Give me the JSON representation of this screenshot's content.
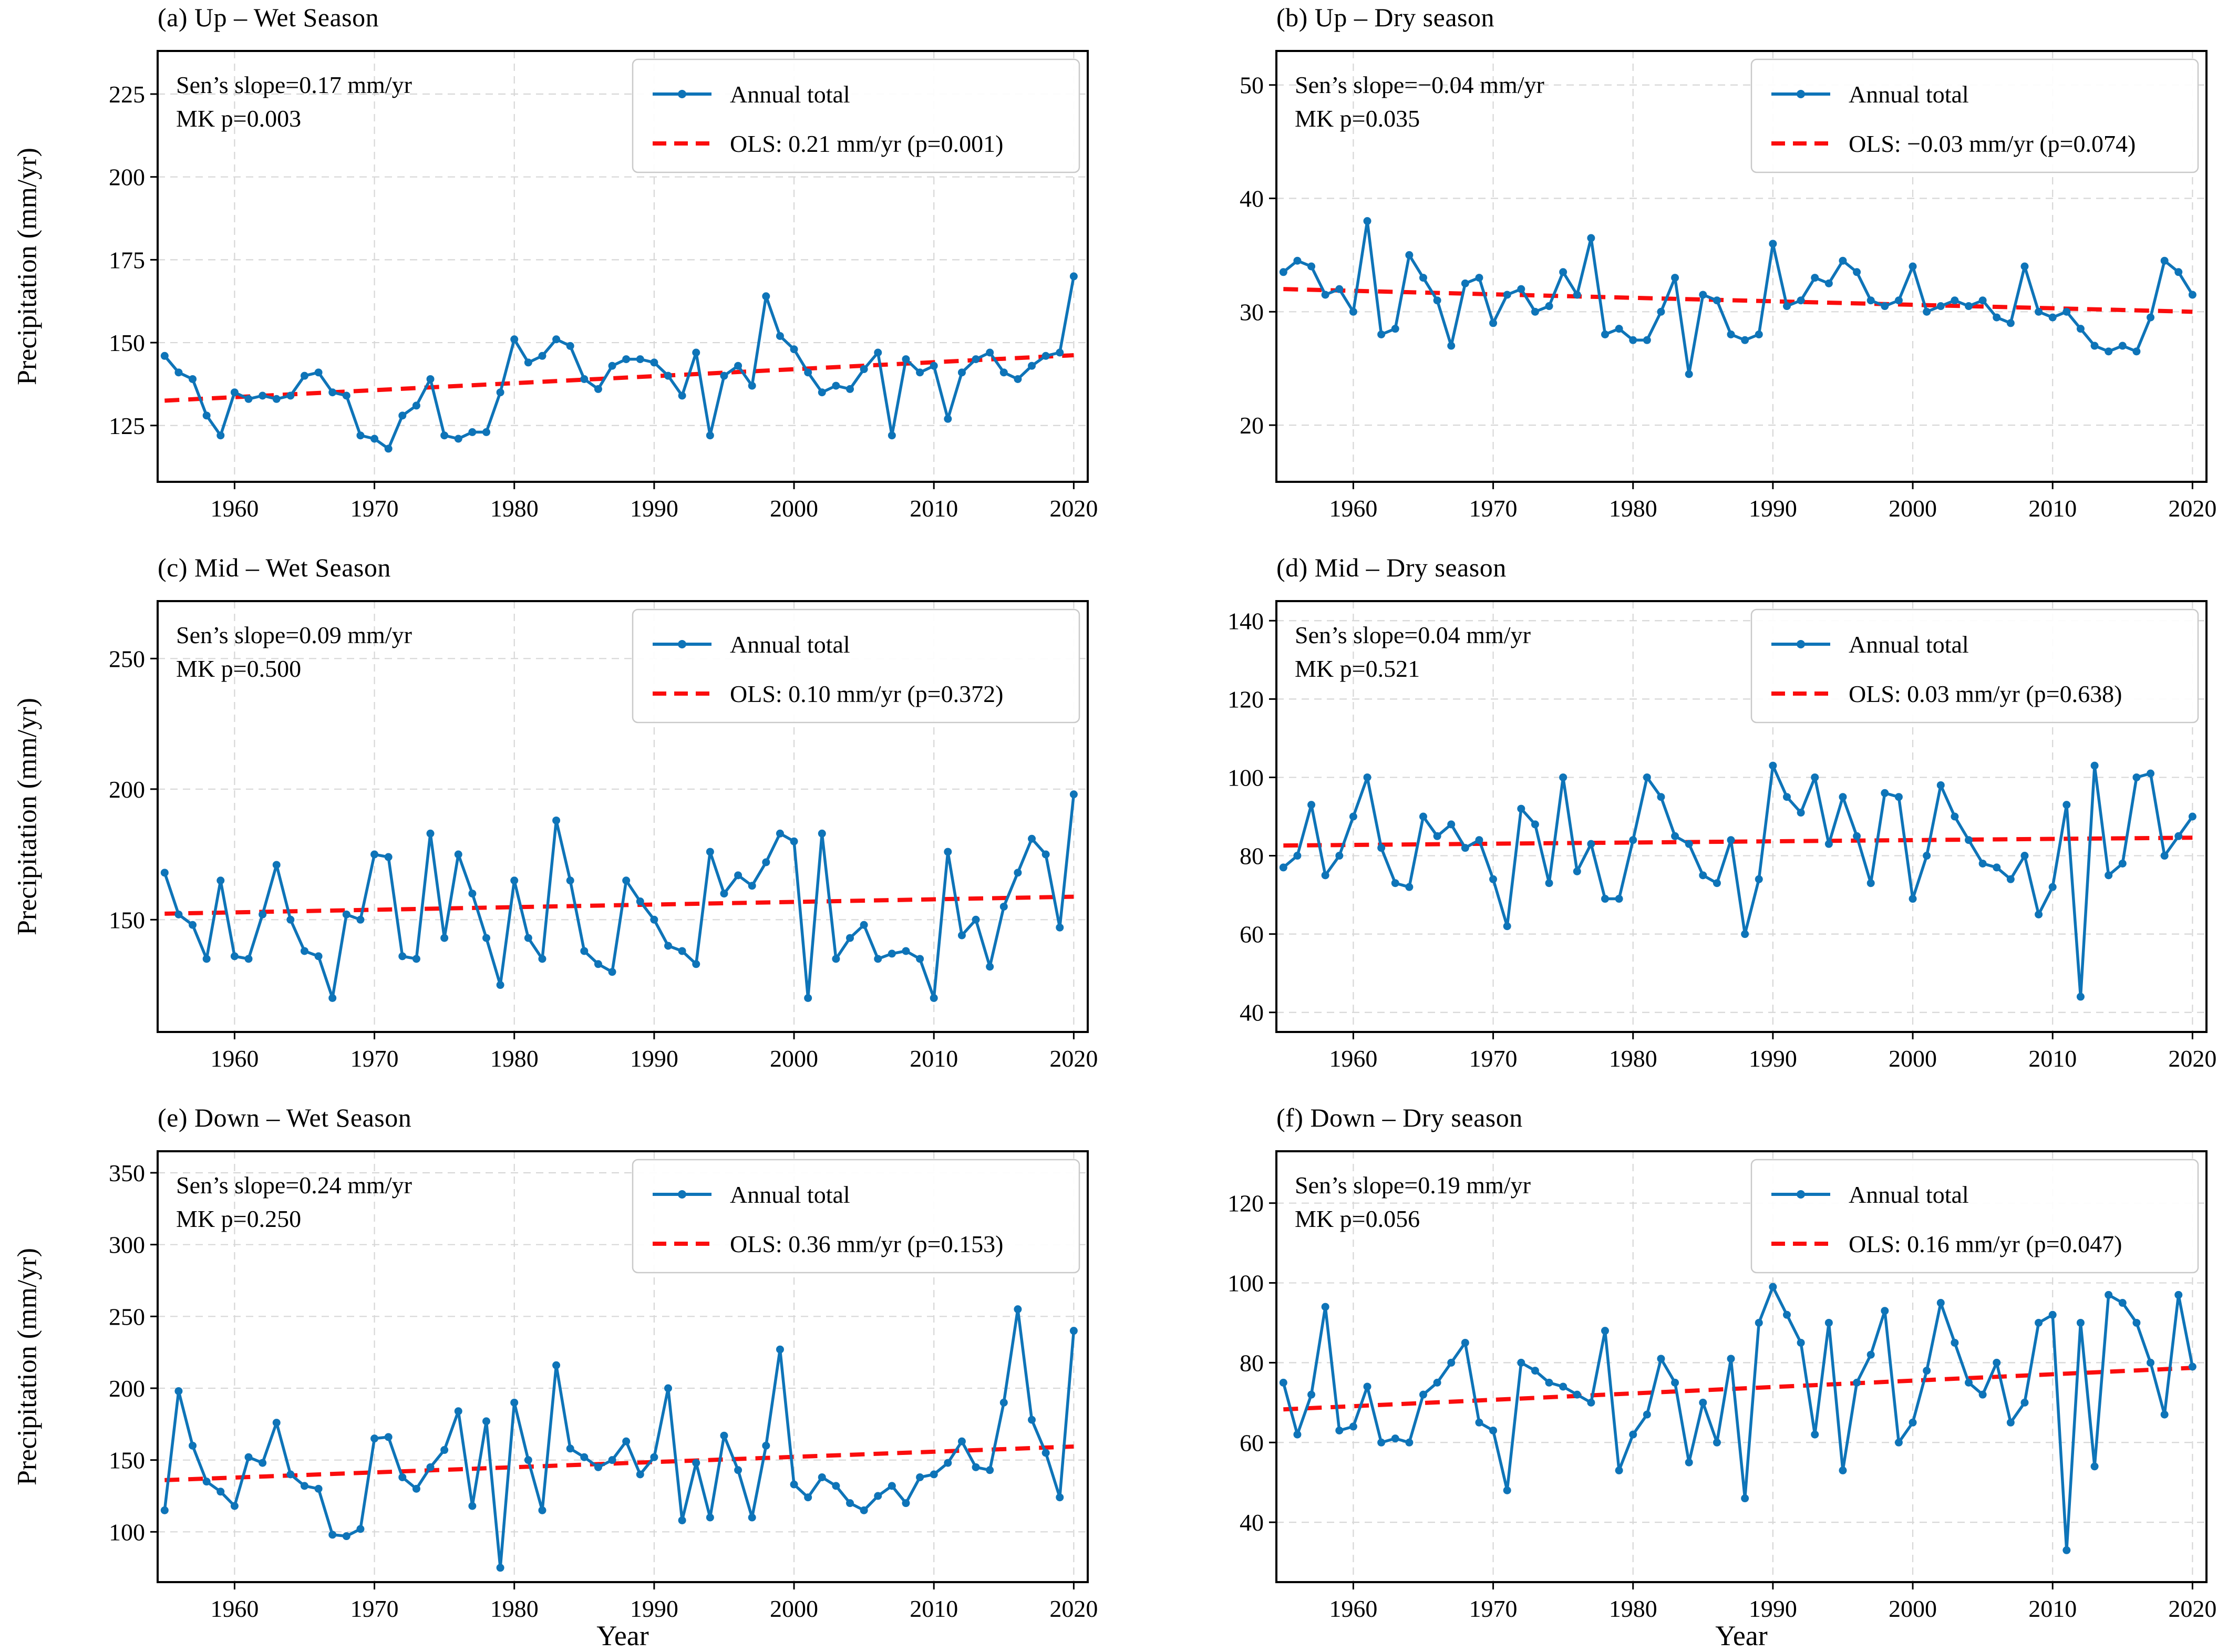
{
  "figure": {
    "ylabel": "Precipitation (mm/yr)",
    "xlabel": "Year",
    "series_color": "#0e74b8",
    "trend_color": "#fb0d0d",
    "grid_color": "#d7d7d7",
    "legend_border_color": "#c9c9c9",
    "background_color": "#ffffff"
  },
  "chart_data": [
    {
      "type": "line",
      "title": "(a) Up – Wet Season",
      "annotation": [
        "Sen’s slope=0.17 mm/yr",
        "MK p=0.003"
      ],
      "legend": [
        "Annual total",
        "OLS: 0.21 mm/yr (p=0.001)"
      ],
      "x_start": 1955,
      "x_step": 1,
      "xlim": [
        1954.5,
        2021
      ],
      "ylim": [
        108,
        238
      ],
      "xticks": [
        1960,
        1970,
        1980,
        1990,
        2000,
        2010,
        2020
      ],
      "yticks": [
        125,
        150,
        175,
        200,
        225
      ],
      "values": [
        146,
        141,
        139,
        128,
        122,
        135,
        133,
        134,
        133,
        134,
        140,
        141,
        135,
        134,
        122,
        121,
        118,
        128,
        131,
        139,
        122,
        121,
        123,
        123,
        135,
        151,
        144,
        146,
        151,
        149,
        139,
        136,
        143,
        145,
        145,
        144,
        140,
        134,
        147,
        122,
        140,
        143,
        137,
        164,
        152,
        148,
        141,
        135,
        137,
        136,
        142,
        147,
        122,
        145,
        141,
        143,
        127,
        141,
        145,
        147,
        141,
        139,
        143,
        146,
        147,
        170
      ],
      "trend": {
        "y_first": 132.5,
        "y_last": 146.2
      },
      "show_ylabel": true,
      "show_xlabel": false
    },
    {
      "type": "line",
      "title": "(b) Up – Dry season",
      "annotation": [
        "Sen’s slope=−0.04 mm/yr",
        "MK p=0.035"
      ],
      "legend": [
        "Annual total",
        "OLS: −0.03 mm/yr (p=0.074)"
      ],
      "x_start": 1955,
      "x_step": 1,
      "xlim": [
        1954.5,
        2021
      ],
      "ylim": [
        15,
        53
      ],
      "xticks": [
        1960,
        1970,
        1980,
        1990,
        2000,
        2010,
        2020
      ],
      "yticks": [
        20,
        30,
        40,
        50
      ],
      "values": [
        33.5,
        34.5,
        34,
        31.5,
        32,
        30,
        38,
        28,
        28.5,
        35,
        33,
        31,
        27,
        32.5,
        33,
        29,
        31.5,
        32,
        30,
        30.5,
        33.5,
        31.5,
        36.5,
        28,
        28.5,
        27.5,
        27.5,
        30,
        33,
        24.5,
        31.5,
        31,
        28,
        27.5,
        28,
        36,
        30.5,
        31,
        33,
        32.5,
        34.5,
        33.5,
        31,
        30.5,
        31,
        34,
        30,
        30.5,
        31,
        30.5,
        31,
        29.5,
        29,
        34,
        30,
        29.5,
        30,
        28.5,
        27,
        26.5,
        27,
        26.5,
        29.5,
        34.5,
        33.5,
        31.5
      ],
      "trend": {
        "y_first": 32.0,
        "y_last": 30.0
      },
      "show_ylabel": false,
      "show_xlabel": false
    },
    {
      "type": "line",
      "title": "(c) Mid – Wet Season",
      "annotation": [
        "Sen’s slope=0.09 mm/yr",
        "MK p=0.500"
      ],
      "legend": [
        "Annual total",
        "OLS: 0.10 mm/yr (p=0.372)"
      ],
      "x_start": 1955,
      "x_step": 1,
      "xlim": [
        1954.5,
        2021
      ],
      "ylim": [
        107,
        272
      ],
      "xticks": [
        1960,
        1970,
        1980,
        1990,
        2000,
        2010,
        2020
      ],
      "yticks": [
        150,
        200,
        250
      ],
      "values": [
        168,
        152,
        148,
        135,
        165,
        136,
        135,
        152,
        171,
        150,
        138,
        136,
        120,
        152,
        150,
        175,
        174,
        136,
        135,
        183,
        143,
        175,
        160,
        143,
        125,
        165,
        143,
        135,
        188,
        165,
        138,
        133,
        130,
        165,
        157,
        150,
        140,
        138,
        133,
        176,
        160,
        167,
        163,
        172,
        183,
        180,
        120,
        183,
        135,
        143,
        148,
        135,
        137,
        138,
        135,
        120,
        176,
        144,
        150,
        132,
        155,
        168,
        181,
        175,
        147,
        198
      ],
      "trend": {
        "y_first": 152.3,
        "y_last": 158.8
      },
      "show_ylabel": true,
      "show_xlabel": false
    },
    {
      "type": "line",
      "title": "(d) Mid – Dry season",
      "annotation": [
        "Sen’s slope=0.04 mm/yr",
        "MK p=0.521"
      ],
      "legend": [
        "Annual total",
        "OLS: 0.03 mm/yr (p=0.638)"
      ],
      "x_start": 1955,
      "x_step": 1,
      "xlim": [
        1954.5,
        2021
      ],
      "ylim": [
        35,
        145
      ],
      "xticks": [
        1960,
        1970,
        1980,
        1990,
        2000,
        2010,
        2020
      ],
      "yticks": [
        40,
        60,
        80,
        100,
        120,
        140
      ],
      "values": [
        77,
        80,
        93,
        75,
        80,
        90,
        100,
        82,
        73,
        72,
        90,
        85,
        88,
        82,
        84,
        74,
        62,
        92,
        88,
        73,
        100,
        76,
        83,
        69,
        69,
        84,
        100,
        95,
        85,
        83,
        75,
        73,
        84,
        60,
        74,
        103,
        95,
        91,
        100,
        83,
        95,
        85,
        73,
        96,
        95,
        69,
        80,
        98,
        90,
        84,
        78,
        77,
        74,
        80,
        65,
        72,
        93,
        44,
        103,
        75,
        78,
        100,
        101,
        80,
        85,
        90
      ],
      "trend": {
        "y_first": 82.6,
        "y_last": 84.6
      },
      "show_ylabel": false,
      "show_xlabel": false
    },
    {
      "type": "line",
      "title": "(e) Down – Wet Season",
      "annotation": [
        "Sen’s slope=0.24 mm/yr",
        "MK p=0.250"
      ],
      "legend": [
        "Annual total",
        "OLS: 0.36 mm/yr (p=0.153)"
      ],
      "x_start": 1955,
      "x_step": 1,
      "xlim": [
        1954.5,
        2021
      ],
      "ylim": [
        65,
        365
      ],
      "xticks": [
        1960,
        1970,
        1980,
        1990,
        2000,
        2010,
        2020
      ],
      "yticks": [
        100,
        150,
        200,
        250,
        300,
        350
      ],
      "values": [
        115,
        198,
        160,
        135,
        128,
        118,
        152,
        148,
        176,
        140,
        132,
        130,
        98,
        97,
        102,
        165,
        166,
        138,
        130,
        145,
        157,
        184,
        118,
        177,
        75,
        190,
        150,
        115,
        216,
        158,
        152,
        145,
        150,
        163,
        140,
        152,
        200,
        108,
        148,
        110,
        167,
        143,
        110,
        160,
        227,
        133,
        124,
        138,
        132,
        120,
        115,
        125,
        132,
        120,
        138,
        140,
        148,
        163,
        145,
        143,
        190,
        255,
        178,
        155,
        124,
        240
      ],
      "trend": {
        "y_first": 136.0,
        "y_last": 159.4
      },
      "show_ylabel": true,
      "show_xlabel": true
    },
    {
      "type": "line",
      "title": "(f) Down – Dry season",
      "annotation": [
        "Sen’s slope=0.19 mm/yr",
        "MK p=0.056"
      ],
      "legend": [
        "Annual total",
        "OLS: 0.16 mm/yr (p=0.047)"
      ],
      "x_start": 1955,
      "x_step": 1,
      "xlim": [
        1954.5,
        2021
      ],
      "ylim": [
        25,
        133
      ],
      "xticks": [
        1960,
        1970,
        1980,
        1990,
        2000,
        2010,
        2020
      ],
      "yticks": [
        40,
        60,
        80,
        100,
        120
      ],
      "values": [
        75,
        62,
        72,
        94,
        63,
        64,
        74,
        60,
        61,
        60,
        72,
        75,
        80,
        85,
        65,
        63,
        48,
        80,
        78,
        75,
        74,
        72,
        70,
        88,
        53,
        62,
        67,
        81,
        75,
        55,
        70,
        60,
        81,
        46,
        90,
        99,
        92,
        85,
        62,
        90,
        53,
        75,
        82,
        93,
        60,
        65,
        78,
        95,
        85,
        75,
        72,
        80,
        65,
        70,
        90,
        92,
        33,
        90,
        54,
        97,
        95,
        90,
        80,
        67,
        97,
        79
      ],
      "trend": {
        "y_first": 68.3,
        "y_last": 78.7
      },
      "show_ylabel": false,
      "show_xlabel": true
    }
  ]
}
